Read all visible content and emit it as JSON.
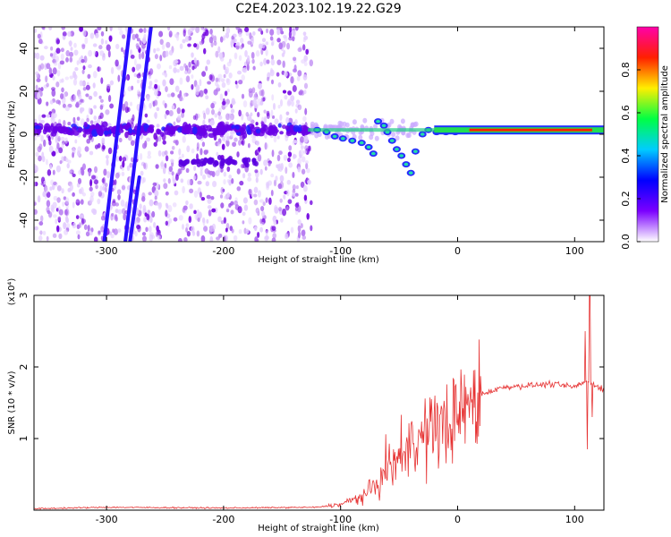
{
  "title": "C2E4.2023.102.19.22.G29",
  "chart_data": [
    {
      "type": "heatmap",
      "xlabel": "Height of straight line (km)",
      "ylabel": "Frequency (Hz)",
      "xlim": [
        -362,
        125
      ],
      "ylim": [
        -50,
        50
      ],
      "xticks": [
        -300,
        -200,
        -100,
        0,
        100
      ],
      "yticks": [
        -40,
        -20,
        0,
        20,
        40
      ],
      "colorbar": {
        "label": "Normalized spectral amplitude",
        "range": [
          0,
          1
        ],
        "ticks": [
          "0.0",
          "0.2",
          "0.4",
          "0.6",
          "0.8"
        ],
        "colors": [
          "#ffffff",
          "#7b00ff",
          "#0000ff",
          "#00ccff",
          "#00ff44",
          "#ffee00",
          "#ff2000",
          "#ff00aa"
        ]
      },
      "streaks": [
        {
          "x_start": -302,
          "y_start": -50,
          "x_end": -280,
          "y_end": 50
        },
        {
          "x_start": -284,
          "y_start": -50,
          "x_end": -262,
          "y_end": 50
        },
        {
          "x_start": -280,
          "y_start": -50,
          "x_end": -272,
          "y_end": -20
        }
      ],
      "tone_line": {
        "x_start": -128,
        "x_end": 125,
        "freq": 2,
        "color": "#ff2000"
      }
    },
    {
      "type": "line",
      "xlabel": "Height of straight line (km)",
      "ylabel": "SNR (10 * v/v)",
      "multiplier_label": "(x10⁴)",
      "xlim": [
        -362,
        125
      ],
      "ylim": [
        0,
        3
      ],
      "xticks": [
        -300,
        -200,
        -100,
        0,
        100
      ],
      "yticks": [
        1,
        2,
        3
      ],
      "color": "#e63232",
      "envelope": [
        {
          "x": -362,
          "y": 0.02
        },
        {
          "x": -300,
          "y": 0.04
        },
        {
          "x": -200,
          "y": 0.03
        },
        {
          "x": -120,
          "y": 0.04
        },
        {
          "x": -100,
          "y": 0.08
        },
        {
          "x": -80,
          "y": 0.2
        },
        {
          "x": -60,
          "y": 0.5
        },
        {
          "x": -40,
          "y": 0.9
        },
        {
          "x": -20,
          "y": 1.1
        },
        {
          "x": 0,
          "y": 1.35
        },
        {
          "x": 20,
          "y": 1.62
        },
        {
          "x": 40,
          "y": 1.72
        },
        {
          "x": 60,
          "y": 1.74
        },
        {
          "x": 80,
          "y": 1.76
        },
        {
          "x": 100,
          "y": 1.72
        },
        {
          "x": 110,
          "y": 1.8
        },
        {
          "x": 125,
          "y": 1.69
        }
      ],
      "spikes": [
        {
          "x": 109,
          "y": 2.5
        },
        {
          "x": 111,
          "y": 0.85
        },
        {
          "x": 113,
          "y": 3.0
        },
        {
          "x": 115,
          "y": 1.3
        }
      ]
    }
  ]
}
